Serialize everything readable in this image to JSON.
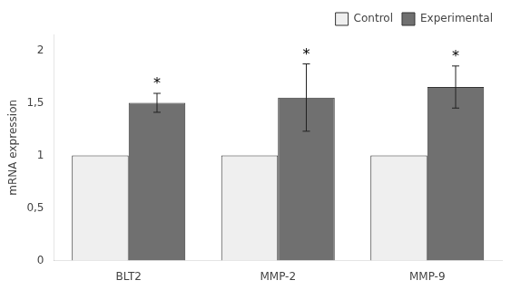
{
  "chart_data": {
    "type": "bar",
    "categories": [
      "BLT2",
      "MMP-2",
      "MMP-9"
    ],
    "series": [
      {
        "name": "Control",
        "color": "#efefef",
        "values": [
          1.0,
          1.0,
          1.0
        ]
      },
      {
        "name": "Experimental",
        "color": "#707070",
        "values": [
          1.5,
          1.55,
          1.65
        ],
        "errors": [
          0.09,
          0.32,
          0.2
        ]
      }
    ],
    "ylabel": "mRNA expression",
    "ylim": [
      0,
      2.15
    ],
    "yticks": [
      0,
      {
        "value": 0.5,
        "label": "0,5"
      },
      1,
      {
        "value": 1.5,
        "label": "1,5"
      },
      2
    ],
    "grid": false,
    "legend": "upper right",
    "annotations": [
      {
        "text": "*",
        "series": "Experimental",
        "category": "BLT2"
      },
      {
        "text": "*",
        "series": "Experimental",
        "category": "MMP-2"
      },
      {
        "text": "*",
        "series": "Experimental",
        "category": "MMP-9"
      }
    ]
  }
}
